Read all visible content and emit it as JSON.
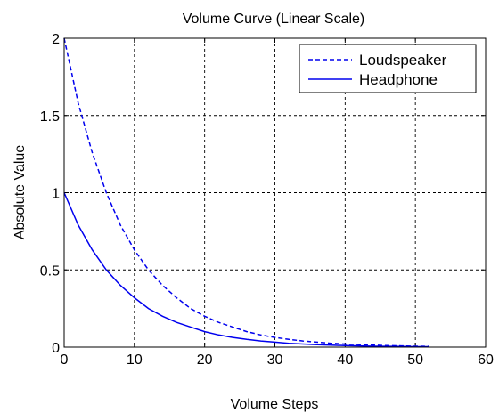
{
  "chart_data": {
    "type": "line",
    "title": "Volume Curve (Linear Scale)",
    "xlabel": "Volume Steps",
    "ylabel": "Absolute Value",
    "xlim": [
      0,
      60
    ],
    "ylim": [
      0,
      2
    ],
    "xticks": [
      0,
      10,
      20,
      30,
      40,
      50,
      60
    ],
    "yticks": [
      0,
      0.5,
      1,
      1.5,
      2
    ],
    "xtick_labels": [
      "0",
      "10",
      "20",
      "30",
      "40",
      "50",
      "60"
    ],
    "ytick_labels": [
      "0",
      "0.5",
      "1",
      "1.5",
      "2"
    ],
    "grid": true,
    "legend_position": "top-right",
    "series": [
      {
        "name": "Loudspeaker",
        "line_style": "dashed",
        "color": "#0000ee",
        "x": [
          0,
          2,
          4,
          6,
          8,
          10,
          12,
          14,
          16,
          18,
          20,
          22,
          24,
          26,
          28,
          30,
          32,
          34,
          36,
          38,
          40,
          42,
          44,
          46,
          48,
          50,
          52
        ],
        "y": [
          2.0,
          1.58,
          1.26,
          1.0,
          0.79,
          0.63,
          0.5,
          0.4,
          0.32,
          0.25,
          0.2,
          0.16,
          0.13,
          0.1,
          0.079,
          0.063,
          0.05,
          0.04,
          0.032,
          0.025,
          0.02,
          0.016,
          0.013,
          0.01,
          0.008,
          0.006,
          0.005
        ]
      },
      {
        "name": "Headphone",
        "line_style": "solid",
        "color": "#0000ee",
        "x": [
          0,
          2,
          4,
          6,
          8,
          10,
          12,
          14,
          16,
          18,
          20,
          22,
          24,
          26,
          28,
          30,
          32,
          34,
          36,
          38,
          40,
          42,
          44,
          46,
          48,
          50,
          52
        ],
        "y": [
          1.0,
          0.79,
          0.63,
          0.5,
          0.4,
          0.32,
          0.25,
          0.2,
          0.16,
          0.13,
          0.1,
          0.079,
          0.063,
          0.05,
          0.04,
          0.032,
          0.025,
          0.02,
          0.016,
          0.013,
          0.01,
          0.008,
          0.006,
          0.005,
          0.004,
          0.003,
          0.003
        ]
      }
    ]
  }
}
